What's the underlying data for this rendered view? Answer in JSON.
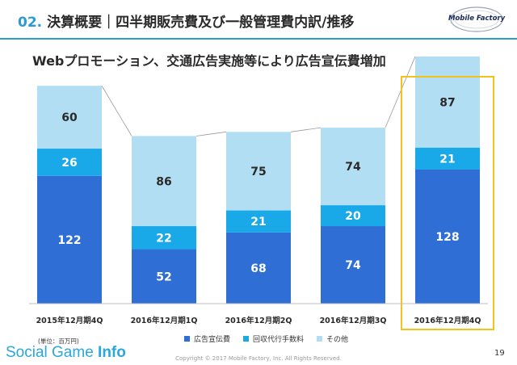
{
  "header": {
    "number": "02.",
    "title": "決算概要｜四半期販売費及び一般管理費内訳/推移"
  },
  "logo": {
    "text": "Mobile Factory"
  },
  "subtitle": "Webプロモーション、交通広告実施等により広告宣伝費増加",
  "unit": "(単位：百万円)",
  "colors": {
    "ad": "#2f6fd5",
    "outsourcing": "#1aa9e8",
    "other": "#b2def4",
    "highlight": "#f2c31a",
    "connector": "#9a9a9a"
  },
  "chart_data": {
    "type": "bar",
    "stacked": true,
    "categories": [
      "2015年12月期4Q",
      "2016年12月期1Q",
      "2016年12月期2Q",
      "2016年12月期3Q",
      "2016年12月期4Q"
    ],
    "series": [
      {
        "name": "広告宣伝費",
        "values": [
          122,
          52,
          68,
          74,
          128
        ]
      },
      {
        "name": "回収代行手数料",
        "values": [
          26,
          22,
          21,
          20,
          21
        ]
      },
      {
        "name": "その他",
        "values": [
          60,
          86,
          75,
          74,
          87
        ]
      }
    ],
    "highlight_category": "2016年12月期4Q"
  },
  "legend": [
    {
      "label": "広告宣伝費"
    },
    {
      "label": "回収代行手数料"
    },
    {
      "label": "その他"
    }
  ],
  "footer": {
    "watermark_light": "Social Game ",
    "watermark_bold": "Info",
    "copyright": "Copyright © 2017 Mobile Factory, Inc. All Rights Reserved.",
    "page": "19"
  }
}
